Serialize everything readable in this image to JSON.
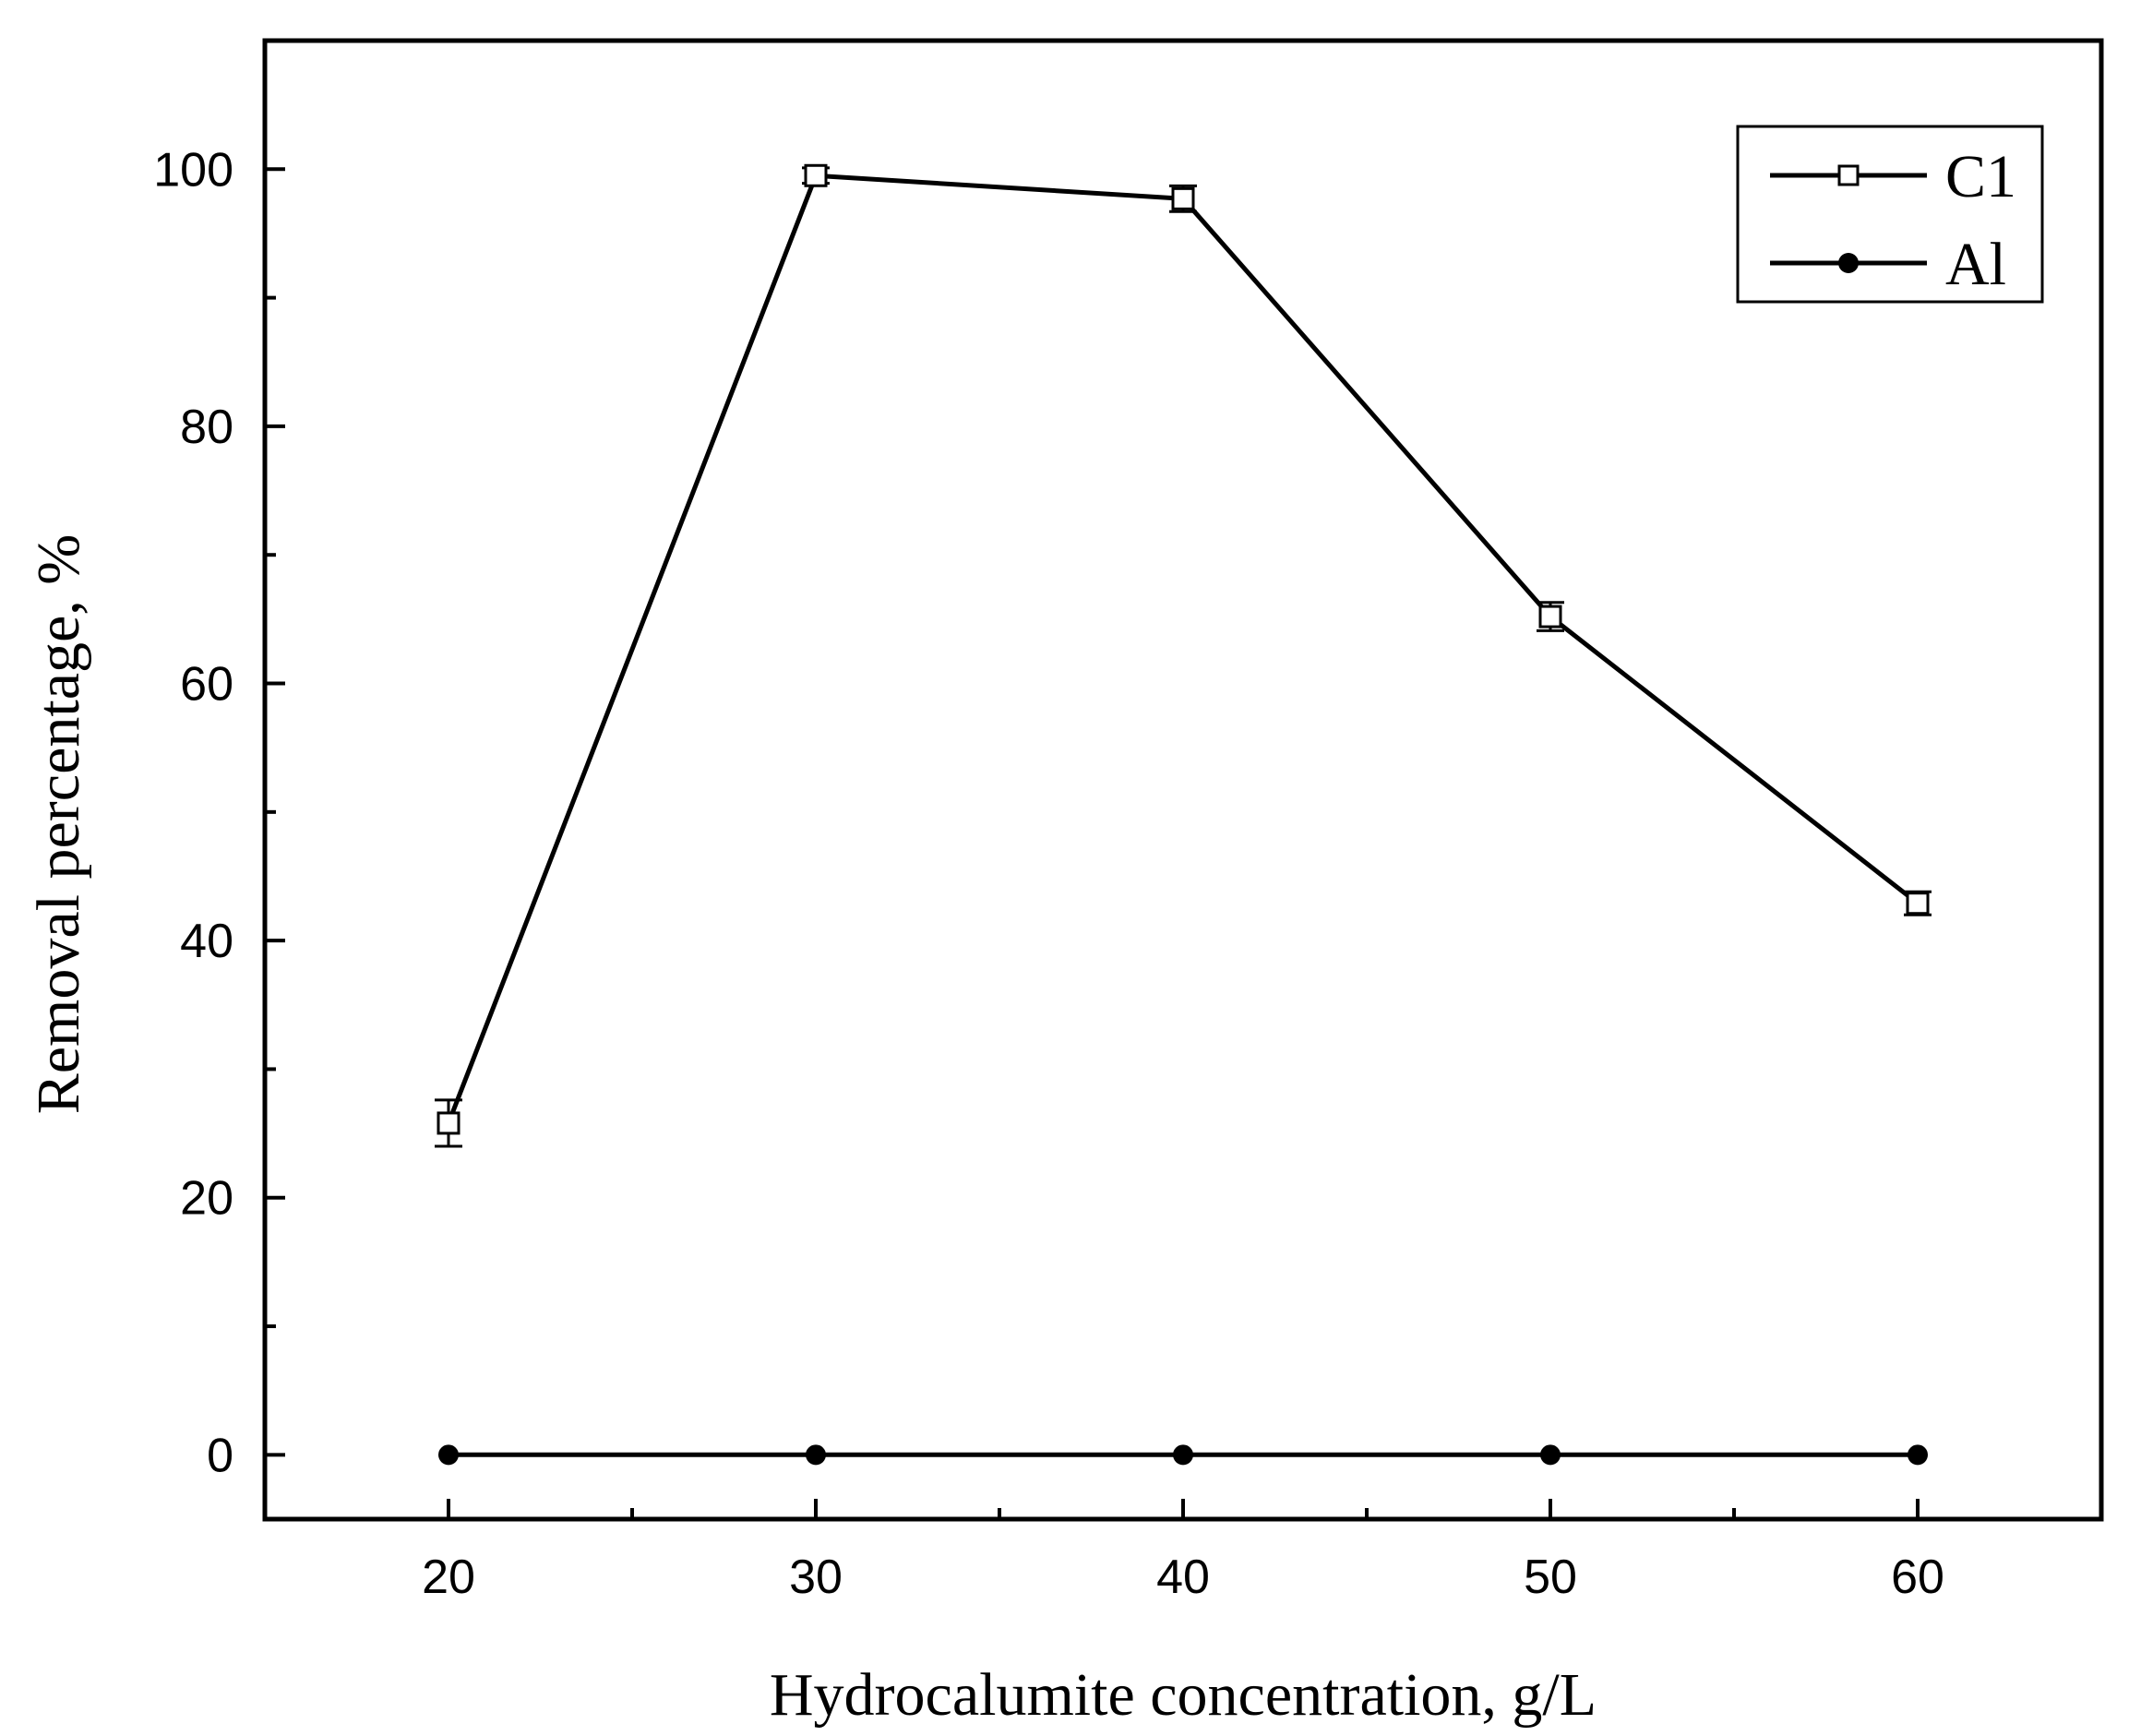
{
  "chart_data": {
    "type": "line",
    "title": "",
    "xlabel": "Hydrocalumite concentration, g/L",
    "ylabel": "Removal percentage, %",
    "x": [
      20,
      30,
      40,
      50,
      60
    ],
    "xlim": [
      15,
      65
    ],
    "ylim": [
      -5,
      110
    ],
    "xticks": [
      20,
      30,
      40,
      50,
      60
    ],
    "yticks": [
      0,
      20,
      40,
      60,
      80,
      100
    ],
    "grid": false,
    "legend_position": "top-right",
    "series": [
      {
        "name": "C1",
        "marker": "open-square",
        "values": [
          25.8,
          99.5,
          97.7,
          65.2,
          42.9
        ],
        "errors": [
          1.8,
          0.6,
          1.0,
          1.1,
          0.9
        ]
      },
      {
        "name": "Al",
        "marker": "filled-circle",
        "values": [
          0,
          0,
          0,
          0,
          0
        ],
        "errors": []
      }
    ],
    "colors": {
      "line": "#000000",
      "background": "#ffffff"
    }
  }
}
